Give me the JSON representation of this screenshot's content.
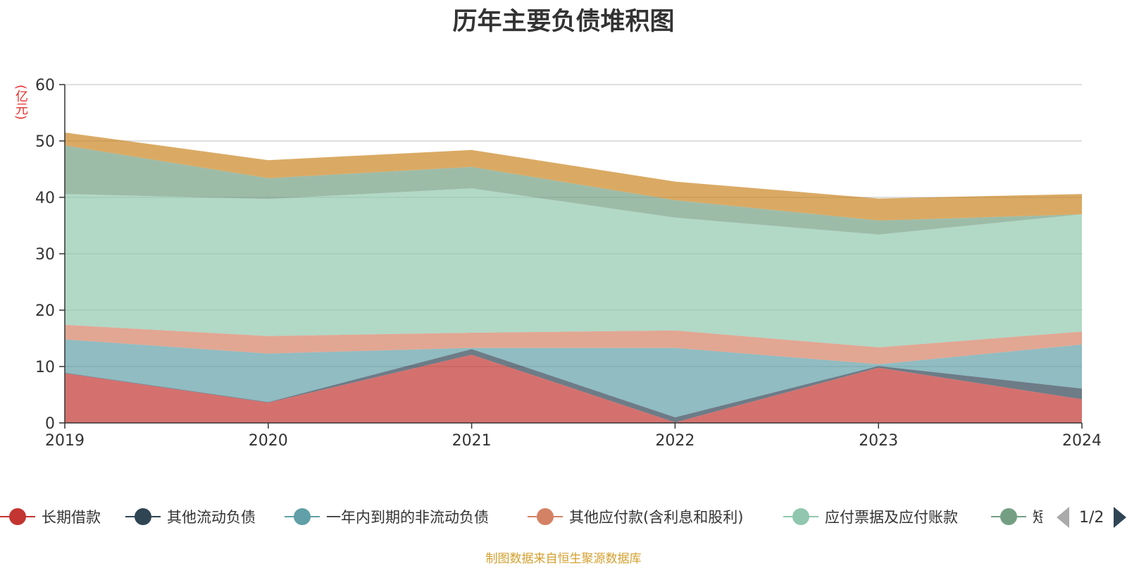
{
  "chart_data": {
    "type": "area",
    "stacked": true,
    "title": "历年主要负债堆积图",
    "unit_label": "(亿元)",
    "source_note": "制图数据来自恒生聚源数据库",
    "categories": [
      "2019",
      "2020",
      "2021",
      "2022",
      "2023",
      "2024"
    ],
    "ylim": [
      0,
      60
    ],
    "y_ticks": [
      0,
      10,
      20,
      30,
      40,
      50,
      60
    ],
    "grid": true,
    "series": [
      {
        "name": "长期借款",
        "color": "#c23531",
        "values": [
          8.8,
          3.6,
          12.1,
          0.1,
          9.8,
          4.2
        ]
      },
      {
        "name": "其他流动负债",
        "color": "#2f4554",
        "values": [
          0.1,
          0.1,
          1.0,
          0.9,
          0.3,
          1.9
        ]
      },
      {
        "name": "一年内到期的非流动负债",
        "color": "#61a0a8",
        "values": [
          5.9,
          8.6,
          0.2,
          12.3,
          0.3,
          7.8
        ]
      },
      {
        "name": "其他应付款(含利息和股利)",
        "color": "#d48265",
        "values": [
          2.6,
          3.1,
          2.7,
          3.1,
          3.0,
          2.3
        ]
      },
      {
        "name": "应付票据及应付账款",
        "color": "#91c7ae",
        "values": [
          23.2,
          24.3,
          25.6,
          20.0,
          20.0,
          20.8
        ]
      },
      {
        "name": "短期借款",
        "color": "#749f83",
        "values": [
          8.6,
          3.7,
          3.8,
          3.1,
          2.5,
          0.0
        ]
      },
      {
        "name": "",
        "color": "#ca8622",
        "values": [
          2.3,
          3.2,
          3.0,
          3.3,
          3.9,
          3.6
        ]
      }
    ],
    "legend": {
      "items": [
        {
          "label": "长期借款",
          "color": "#c23531"
        },
        {
          "label": "其他流动负债",
          "color": "#2f4554"
        },
        {
          "label": "一年内到期的非流动负债",
          "color": "#61a0a8"
        },
        {
          "label": "其他应付款(含利息和股利)",
          "color": "#d48265"
        },
        {
          "label": "应付票据及应付账款",
          "color": "#91c7ae"
        },
        {
          "label": "短期借款",
          "color": "#749f83"
        }
      ],
      "page_indicator": "1/2"
    }
  }
}
